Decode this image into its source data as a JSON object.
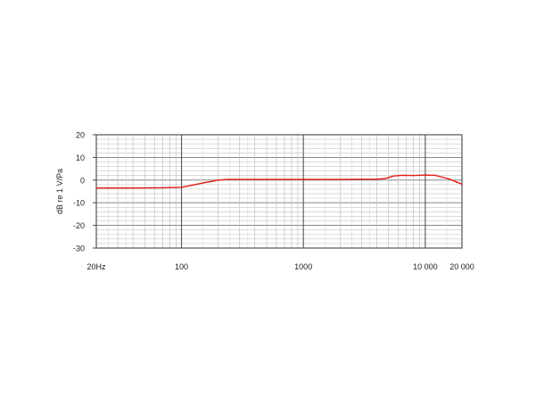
{
  "chart_data": {
    "type": "line",
    "x_scale": "log",
    "xlim": [
      20,
      20000
    ],
    "ylim": [
      -30,
      20
    ],
    "ylabel": "dB re 1 V/Pa",
    "xlabel": "",
    "x_ticks": [
      {
        "value": 20,
        "label": "20Hz"
      },
      {
        "value": 100,
        "label": "100"
      },
      {
        "value": 1000,
        "label": "1000"
      },
      {
        "value": 10000,
        "label": "10 000"
      },
      {
        "value": 20000,
        "label": "20 000"
      }
    ],
    "y_ticks": [
      {
        "value": 20,
        "label": "20"
      },
      {
        "value": 10,
        "label": "10"
      },
      {
        "value": 0,
        "label": "0"
      },
      {
        "value": -10,
        "label": "-10"
      },
      {
        "value": -20,
        "label": "-20"
      },
      {
        "value": -30,
        "label": "-30"
      }
    ],
    "grid": "on",
    "legend": "none",
    "series": [
      {
        "color": "#e01a12",
        "x": [
          20,
          40,
          70,
          100,
          150,
          200,
          240,
          300,
          500,
          1000,
          2000,
          4000,
          4700,
          5500,
          6500,
          8000,
          10000,
          12000,
          14000,
          16000,
          18000,
          20000
        ],
        "y": [
          -3.5,
          -3.5,
          -3.4,
          -3.2,
          -1.3,
          0.0,
          0.3,
          0.3,
          0.3,
          0.3,
          0.3,
          0.4,
          0.7,
          1.8,
          2.1,
          2.0,
          2.2,
          2.1,
          1.2,
          0.3,
          -0.8,
          -1.8
        ]
      }
    ]
  }
}
